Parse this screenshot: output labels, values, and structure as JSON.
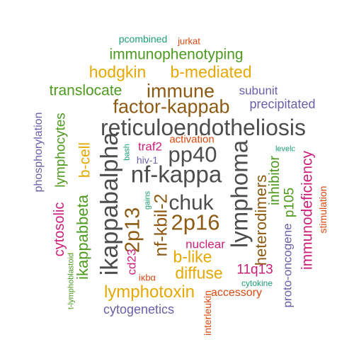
{
  "palette": {
    "gray": "#4d4d4d",
    "brown": "#8c5a13",
    "gold": "#e6a800",
    "green": "#4d9a1f",
    "purple": "#6a5fa8",
    "magenta": "#cc1f7a",
    "orange": "#d9480f",
    "teal": "#1b9e77"
  },
  "words": [
    {
      "text": "pcombined",
      "color": "teal"
    },
    {
      "text": "jurkat",
      "color": "orange"
    },
    {
      "text": "immunophenotyping",
      "color": "green"
    },
    {
      "text": "hodgkin",
      "color": "gold"
    },
    {
      "text": "b-mediated",
      "color": "gold"
    },
    {
      "text": "translocate",
      "color": "green"
    },
    {
      "text": "immune",
      "color": "brown"
    },
    {
      "text": "subunit",
      "color": "purple"
    },
    {
      "text": "factor-kappab",
      "color": "brown"
    },
    {
      "text": "precipitated",
      "color": "purple"
    },
    {
      "text": "phosphorylation",
      "color": "purple"
    },
    {
      "text": "reticuloendotheliosis",
      "color": "gray"
    },
    {
      "text": "lymphocytes",
      "color": "green"
    },
    {
      "text": "activation",
      "color": "orange"
    },
    {
      "text": "bash",
      "color": "teal"
    },
    {
      "text": "traf2",
      "color": "magenta"
    },
    {
      "text": "hiv-1",
      "color": "purple"
    },
    {
      "text": "pp40",
      "color": "gray"
    },
    {
      "text": "levelc",
      "color": "teal"
    },
    {
      "text": "b-cell",
      "color": "gold"
    },
    {
      "text": "ikappabalpha",
      "color": "gray"
    },
    {
      "text": "lymphoma",
      "color": "gray"
    },
    {
      "text": "nf-kappa",
      "color": "gray"
    },
    {
      "text": "inhibitor",
      "color": "green"
    },
    {
      "text": "immunodeficiency",
      "color": "magenta"
    },
    {
      "text": "stimulation",
      "color": "orange"
    },
    {
      "text": "p105",
      "color": "green"
    },
    {
      "text": "heterodimers",
      "color": "brown"
    },
    {
      "text": "gains",
      "color": "teal"
    },
    {
      "text": "chuk",
      "color": "gray"
    },
    {
      "text": "nf-kbil-2",
      "color": "brown"
    },
    {
      "text": "2p13",
      "color": "brown"
    },
    {
      "text": "2p16",
      "color": "brown"
    },
    {
      "text": "cytosolic",
      "color": "magenta"
    },
    {
      "text": "ikappabbeta",
      "color": "green"
    },
    {
      "text": "proto-oncogene",
      "color": "purple"
    },
    {
      "text": "nuclear",
      "color": "magenta"
    },
    {
      "text": "cd23",
      "color": "magenta"
    },
    {
      "text": "b-like",
      "color": "gold"
    },
    {
      "text": "t-lymphoblastoid",
      "color": "green"
    },
    {
      "text": "11q13",
      "color": "magenta"
    },
    {
      "text": "diffuse",
      "color": "gold"
    },
    {
      "text": "iκbα",
      "color": "orange"
    },
    {
      "text": "cytokine",
      "color": "teal"
    },
    {
      "text": "lymphotoxin",
      "color": "gold"
    },
    {
      "text": "accessory",
      "color": "orange"
    },
    {
      "text": "interleukin",
      "color": "orange"
    },
    {
      "text": "cytogenetics",
      "color": "purple"
    }
  ]
}
